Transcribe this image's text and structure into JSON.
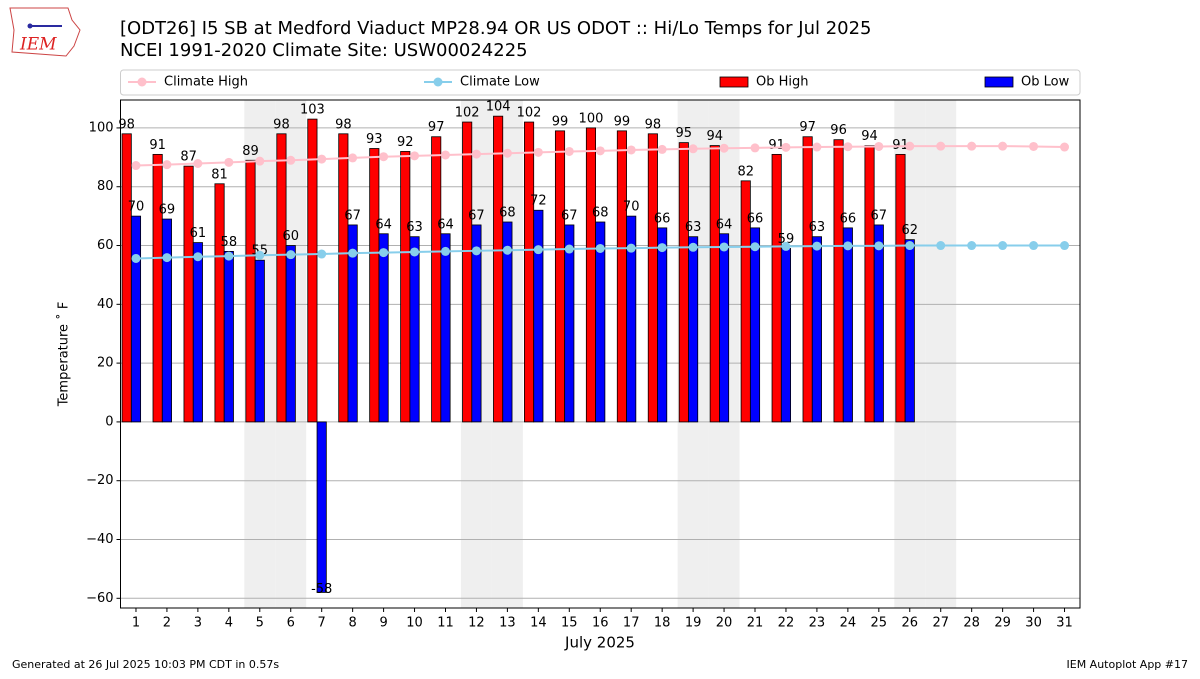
{
  "logo_text": "IEM",
  "footer": {
    "left": "Generated at 26 Jul 2025 10:03 PM CDT in 0.57s",
    "right": "IEM Autoplot App #17"
  },
  "chart_data": {
    "type": "bar",
    "title": "[ODT26] I5 SB at Medford Viaduct MP28.94 OR US ODOT :: Hi/Lo Temps for Jul 2025",
    "subtitle": "NCEI 1991-2020 Climate Site: USW00024225",
    "x_label": "July 2025",
    "y_label": "Temperature ˚ F",
    "categories": [
      "1",
      "2",
      "3",
      "4",
      "5",
      "6",
      "7",
      "8",
      "9",
      "10",
      "11",
      "12",
      "13",
      "14",
      "15",
      "16",
      "17",
      "18",
      "19",
      "20",
      "21",
      "22",
      "23",
      "24",
      "25",
      "26",
      "27",
      "28",
      "29",
      "30",
      "31"
    ],
    "shaded_categories": [
      4,
      5,
      11,
      12,
      18,
      19,
      25,
      26
    ],
    "shade_color": "#efefef",
    "ylim": [
      -63.3,
      109.5
    ],
    "yticks": [
      {
        "value": -60,
        "label": "−60"
      },
      {
        "value": -40,
        "label": "−40"
      },
      {
        "value": -20,
        "label": "−20"
      },
      0,
      20,
      40,
      60,
      80,
      100
    ],
    "grid": true,
    "series": [
      {
        "name": "Climate High",
        "type": "line",
        "color": "#ffc0cb",
        "values": [
          87.2,
          87.5,
          87.9,
          88.3,
          88.7,
          89.0,
          89.4,
          89.8,
          90.2,
          90.5,
          90.8,
          91.1,
          91.4,
          91.7,
          92.0,
          92.2,
          92.5,
          92.7,
          92.9,
          93.1,
          93.2,
          93.4,
          93.5,
          93.6,
          93.7,
          93.8,
          93.8,
          93.8,
          93.8,
          93.7,
          93.5
        ]
      },
      {
        "name": "Climate Low",
        "type": "line",
        "color": "#87ceeb",
        "values": [
          55.6,
          55.9,
          56.2,
          56.4,
          56.7,
          56.9,
          57.1,
          57.4,
          57.6,
          57.8,
          58.0,
          58.2,
          58.4,
          58.6,
          58.8,
          59.0,
          59.1,
          59.3,
          59.4,
          59.5,
          59.6,
          59.7,
          59.8,
          59.9,
          59.9,
          60.0,
          60.0,
          60.0,
          60.0,
          60.0,
          60.0
        ]
      },
      {
        "name": "Ob High",
        "type": "bar",
        "color": "#ff0000",
        "values": [
          98,
          91,
          87,
          81,
          89,
          98,
          103,
          98,
          93,
          92,
          97,
          102,
          104,
          102,
          99,
          100,
          99,
          98,
          95,
          94,
          82,
          91,
          97,
          96,
          94,
          91,
          null,
          null,
          null,
          null,
          null
        ]
      },
      {
        "name": "Ob Low",
        "type": "bar",
        "color": "#0000ff",
        "values": [
          70,
          69,
          61,
          58,
          55,
          60,
          -58,
          67,
          64,
          63,
          64,
          67,
          68,
          72,
          67,
          68,
          70,
          66,
          63,
          64,
          66,
          59,
          63,
          66,
          67,
          62,
          null,
          null,
          null,
          null,
          null
        ]
      }
    ]
  }
}
